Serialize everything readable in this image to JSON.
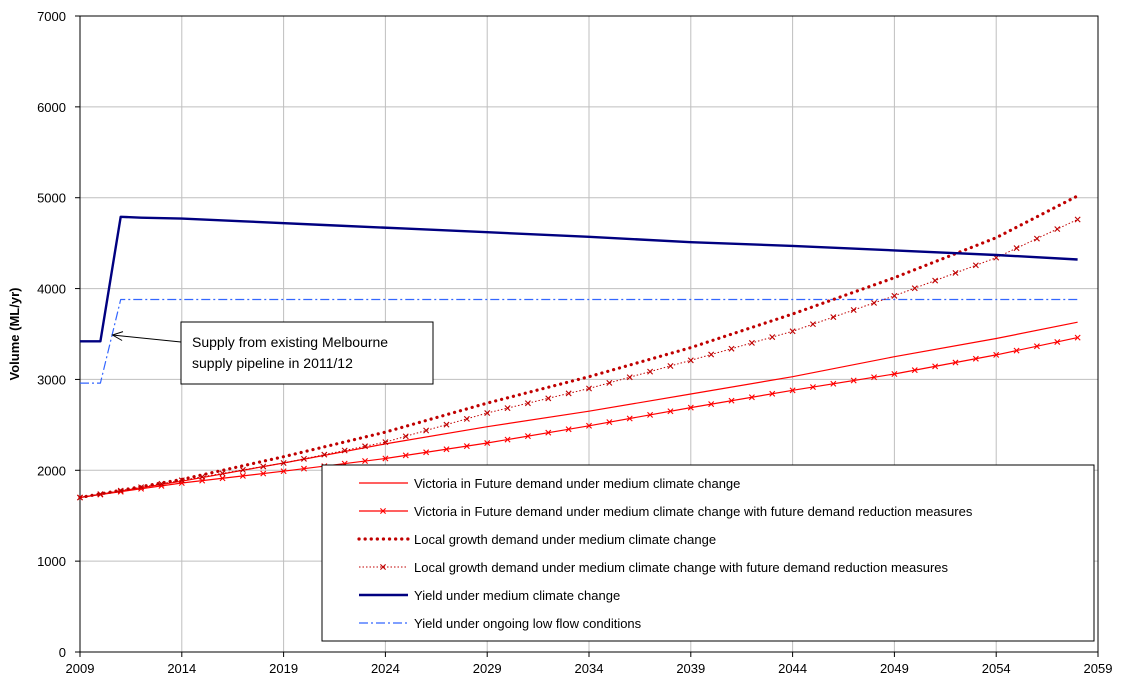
{
  "chart_data": {
    "type": "line",
    "xlabel": "",
    "ylabel": "Volume (ML/yr)",
    "xlim": [
      2009,
      2059
    ],
    "ylim": [
      0,
      7000
    ],
    "x_ticks": [
      2009,
      2014,
      2019,
      2024,
      2029,
      2034,
      2039,
      2044,
      2049,
      2054,
      2059
    ],
    "y_ticks": [
      0,
      1000,
      2000,
      3000,
      4000,
      5000,
      6000,
      7000
    ],
    "grid": true,
    "legend_position": "bottom-right",
    "annotation": {
      "lines": [
        "Supply from existing Melbourne",
        "supply pipeline in 2011/12"
      ],
      "target": {
        "x": 2010.5,
        "y": 3500
      }
    },
    "series": [
      {
        "name": "Victoria in Future demand under medium climate change",
        "color": "#ff0000",
        "style": "solid",
        "marker": "none",
        "x": [
          2009,
          2014,
          2019,
          2024,
          2029,
          2034,
          2039,
          2044,
          2049,
          2054,
          2058
        ],
        "y": [
          1700,
          1880,
          2080,
          2290,
          2480,
          2650,
          2840,
          3030,
          3250,
          3450,
          3630
        ]
      },
      {
        "name": "Victoria in Future demand under medium climate change with future demand reduction measures",
        "color": "#ff0000",
        "style": "solid",
        "marker": "x",
        "x": [
          2009,
          2014,
          2019,
          2024,
          2029,
          2034,
          2039,
          2044,
          2049,
          2054,
          2058
        ],
        "y": [
          1700,
          1860,
          1990,
          2130,
          2300,
          2490,
          2690,
          2880,
          3060,
          3270,
          3460
        ]
      },
      {
        "name": "Local growth demand under medium climate change",
        "color": "#c00000",
        "style": "dotted-thick",
        "marker": "none",
        "x": [
          2009,
          2014,
          2019,
          2024,
          2029,
          2034,
          2039,
          2044,
          2049,
          2054,
          2058
        ],
        "y": [
          1700,
          1900,
          2150,
          2420,
          2740,
          3030,
          3350,
          3720,
          4120,
          4560,
          5020
        ]
      },
      {
        "name": "Local growth demand  under medium climate change with future demand reduction measures",
        "color": "#c00000",
        "style": "dotted",
        "marker": "x",
        "x": [
          2009,
          2014,
          2019,
          2024,
          2029,
          2034,
          2039,
          2044,
          2049,
          2054,
          2058
        ],
        "y": [
          1700,
          1890,
          2080,
          2310,
          2630,
          2900,
          3210,
          3530,
          3920,
          4340,
          4760
        ]
      },
      {
        "name": "Yield under medium climate change",
        "color": "#000080",
        "style": "solid-thick",
        "marker": "none",
        "x": [
          2009,
          2010,
          2011,
          2012,
          2014,
          2017,
          2021,
          2025,
          2029,
          2034,
          2039,
          2044,
          2049,
          2054,
          2058
        ],
        "y": [
          3420,
          3420,
          4790,
          4780,
          4770,
          4740,
          4700,
          4660,
          4620,
          4570,
          4510,
          4470,
          4420,
          4370,
          4320
        ]
      },
      {
        "name": "Yield under ongoing low flow conditions",
        "color": "#3366ff",
        "style": "dashdot",
        "marker": "none",
        "x": [
          2009,
          2010,
          2011,
          2058
        ],
        "y": [
          2960,
          2960,
          3880,
          3880
        ]
      }
    ]
  }
}
